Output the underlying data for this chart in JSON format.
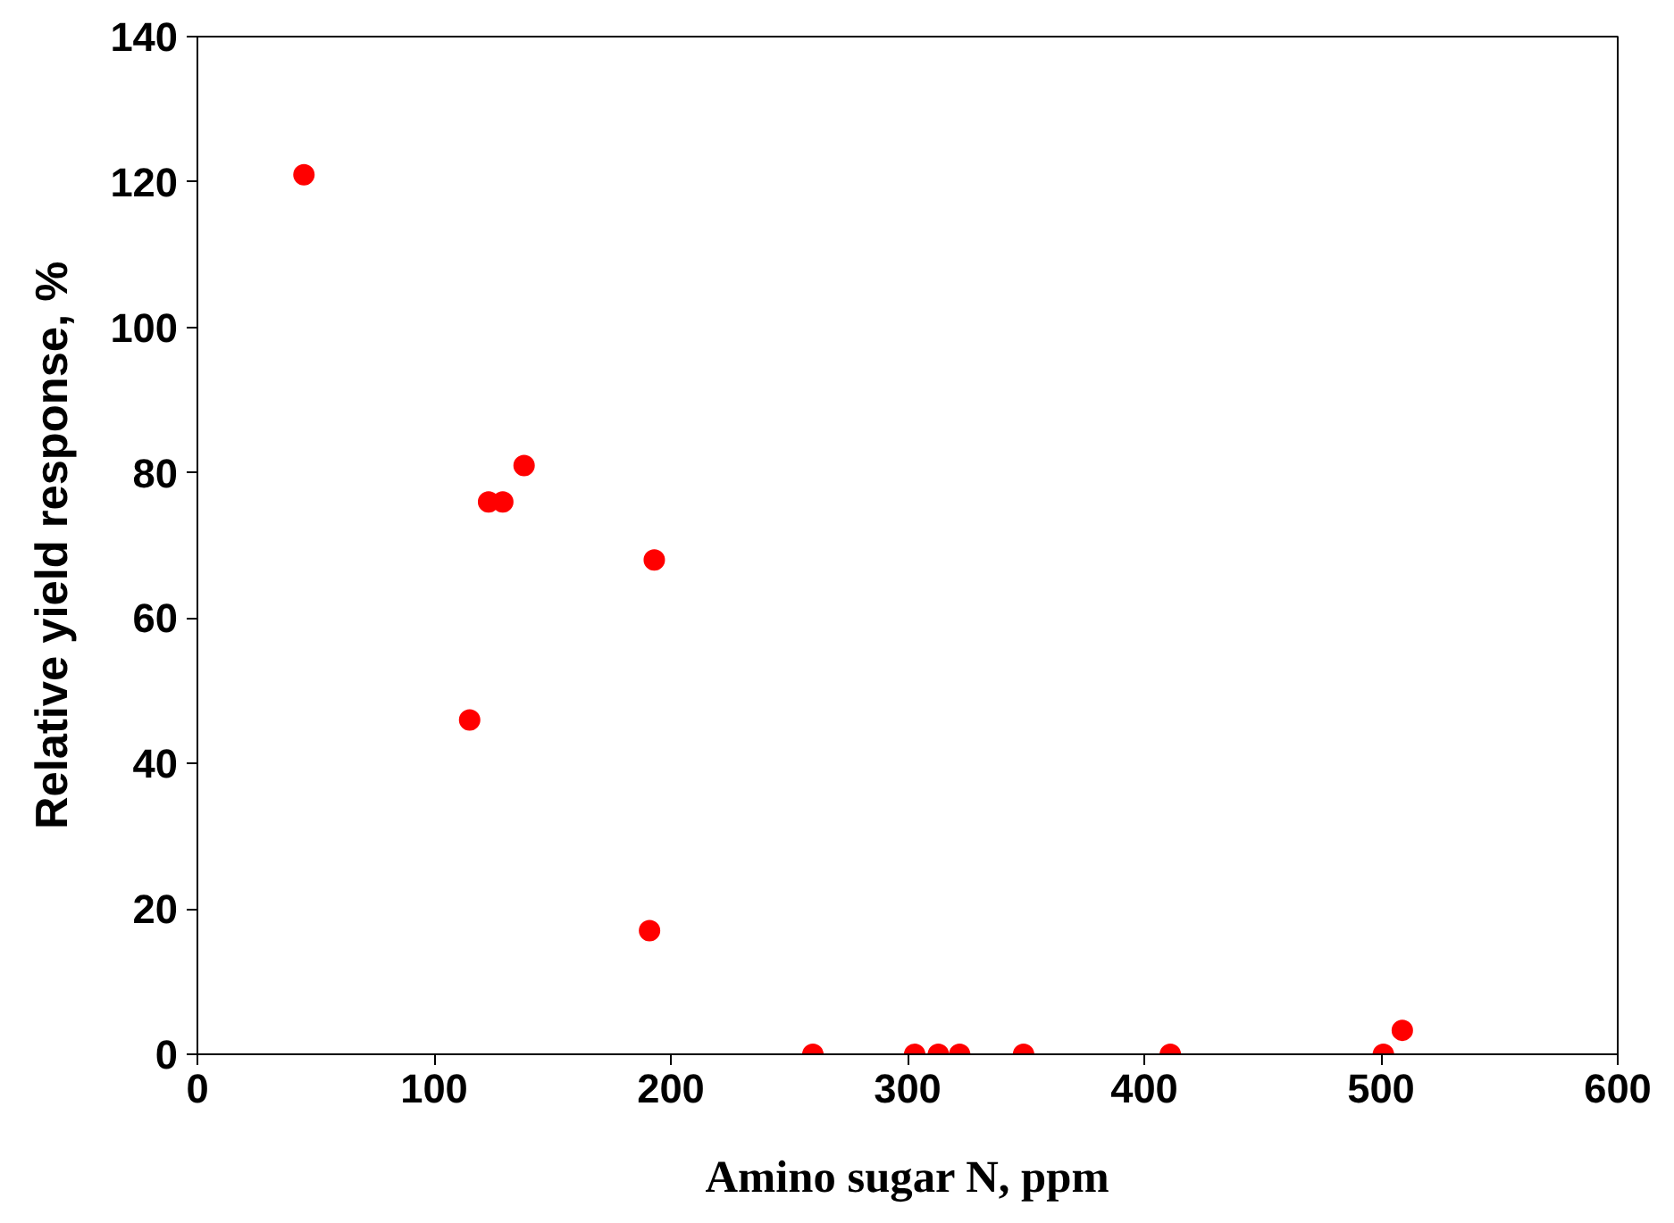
{
  "chart_data": {
    "type": "scatter",
    "xlabel": "Amino sugar N, ppm",
    "ylabel": "Relative yield response, %",
    "x": [
      45,
      115,
      123,
      129,
      138,
      193,
      191,
      260,
      303,
      313,
      322,
      349,
      411,
      501,
      509
    ],
    "series": [
      {
        "color": "#ff0000",
        "values": [
          121,
          46,
          76,
          76,
          81,
          68,
          17,
          0,
          0,
          0,
          0,
          0,
          0,
          0,
          3.3
        ]
      }
    ],
    "xlim": [
      0,
      600
    ],
    "ylim": [
      0,
      140
    ],
    "xticks": [
      0,
      100,
      200,
      300,
      400,
      500,
      600
    ],
    "yticks": [
      0,
      20,
      40,
      60,
      80,
      100,
      120,
      140
    ],
    "grid": false,
    "marker": "circle"
  }
}
